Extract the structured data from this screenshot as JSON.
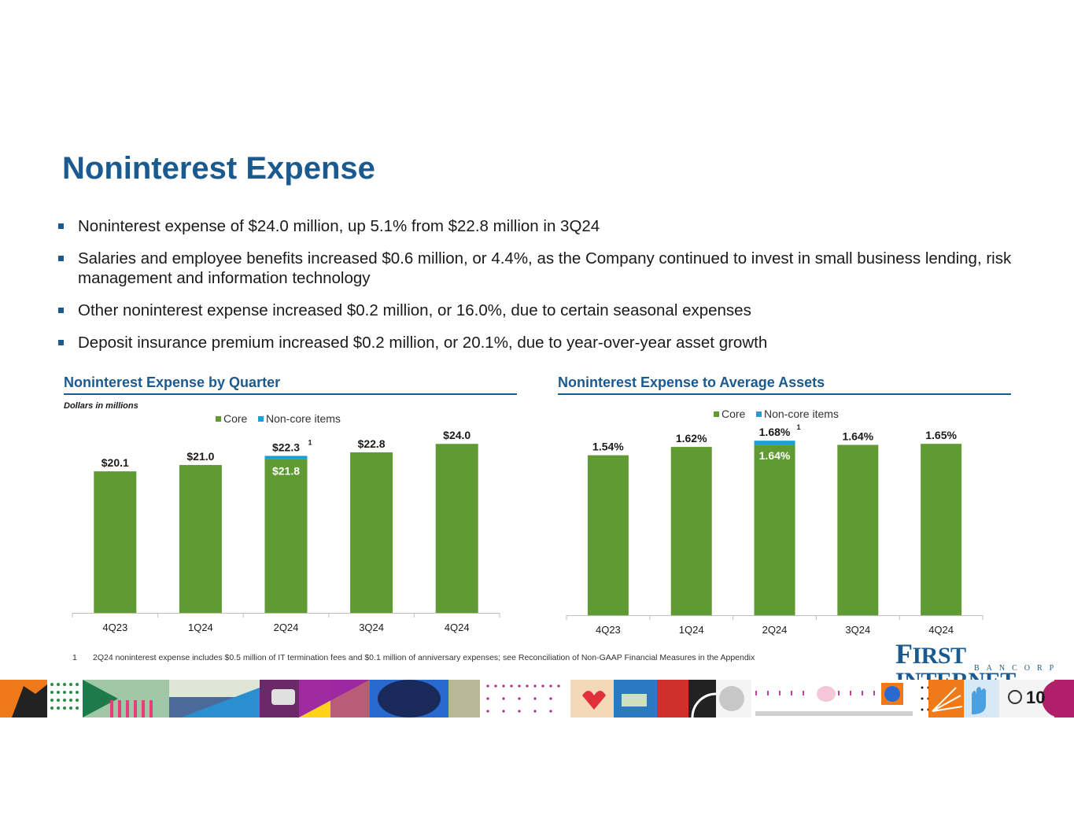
{
  "title": "Noninterest Expense",
  "bullets": [
    "Noninterest expense of $24.0 million, up 5.1% from $22.8 million in 3Q24",
    "Salaries and employee benefits increased $0.6 million, or 4.4%, as the Company continued to invest in small business lending, risk management and information technology",
    "Other noninterest expense increased $0.2 million, or 16.0%, due to certain seasonal expenses",
    "Deposit insurance premium increased $0.2 million, or 20.1%, due to year-over-year asset growth"
  ],
  "colors": {
    "core": "#5f9a32",
    "noncore": "#1aa0d8",
    "accent": "#1b5a8f"
  },
  "chart_data": [
    {
      "type": "bar",
      "stacked": true,
      "title": "Noninterest Expense by Quarter",
      "subtitle": "Dollars in millions",
      "legend": [
        "Core",
        "Non-core items"
      ],
      "legend_position": "top",
      "categories": [
        "4Q23",
        "1Q24",
        "2Q24",
        "3Q24",
        "4Q24"
      ],
      "series": [
        {
          "name": "Core",
          "values": [
            20.1,
            21.0,
            21.8,
            22.8,
            24.0
          ]
        },
        {
          "name": "Non-core items",
          "values": [
            0,
            0,
            0.5,
            0,
            0
          ]
        }
      ],
      "total_labels": [
        "$20.1",
        "$21.0",
        "$22.3",
        "$22.8",
        "$24.0"
      ],
      "inner_labels": [
        "",
        "",
        "$21.8",
        "",
        ""
      ],
      "footnote_marks": [
        "",
        "",
        "1",
        "",
        ""
      ],
      "ylim": [
        0,
        29.5
      ]
    },
    {
      "type": "bar",
      "stacked": true,
      "title": "Noninterest Expense to Average Assets",
      "legend": [
        "Core",
        "Non-core items"
      ],
      "legend_position": "top",
      "categories": [
        "4Q23",
        "1Q24",
        "2Q24",
        "3Q24",
        "4Q24"
      ],
      "series": [
        {
          "name": "Core",
          "values": [
            1.54,
            1.62,
            1.64,
            1.64,
            1.65
          ]
        },
        {
          "name": "Non-core items",
          "values": [
            0,
            0,
            0.04,
            0,
            0
          ]
        }
      ],
      "total_labels": [
        "1.54%",
        "1.62%",
        "1.68%",
        "1.64%",
        "1.65%"
      ],
      "inner_labels": [
        "",
        "",
        "1.64%",
        "",
        ""
      ],
      "footnote_marks": [
        "",
        "",
        "1",
        "",
        ""
      ],
      "ylim": [
        0,
        2.06
      ]
    }
  ],
  "footnote": {
    "number": "1",
    "text": "2Q24 noninterest expense includes $0.5 million of IT termination fees and $0.1 million of anniversary expenses; see Reconciliation of Non-GAAP Financial Measures in the Appendix"
  },
  "logo": {
    "initial": "F",
    "main": "IRST INTERNET",
    "sub": "BANCORP"
  },
  "page_number": "10"
}
